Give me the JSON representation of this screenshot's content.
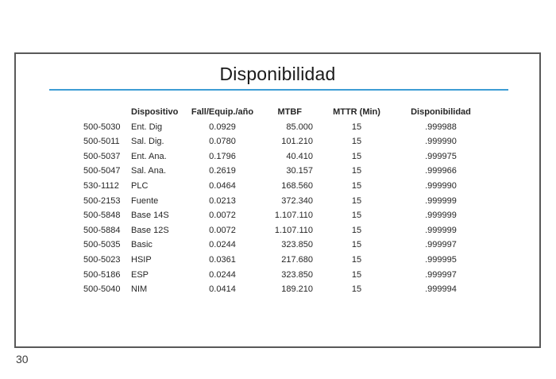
{
  "page_number": "30",
  "colors": {
    "accent_line": "#3d9dd4",
    "slide_border": "#595959",
    "title_text": "#1a1a1a",
    "table_text": "#262626"
  },
  "slide": {
    "title": "Disponibilidad",
    "table": {
      "headers": [
        "",
        "Dispositivo",
        "Fall/Equip./año",
        "MTBF",
        "MTTR (Min)",
        "Disponibilidad"
      ],
      "rows": [
        [
          "500-5030",
          "Ent. Dig",
          "0.0929",
          "85.000",
          "15",
          ".999988"
        ],
        [
          "500-5011",
          "Sal. Dig.",
          "0.0780",
          "101.210",
          "15",
          ".999990"
        ],
        [
          "500-5037",
          "Ent. Ana.",
          "0.1796",
          "40.410",
          "15",
          ".999975"
        ],
        [
          "500-5047",
          "Sal. Ana.",
          "0.2619",
          "30.157",
          "15",
          ".999966"
        ],
        [
          "530-1112",
          "PLC",
          "0.0464",
          "168.560",
          "15",
          ".999990"
        ],
        [
          "500-2153",
          "Fuente",
          "0.0213",
          "372.340",
          "15",
          ".999999"
        ],
        [
          "500-5848",
          "Base 14S",
          "0.0072",
          "1.107.110",
          "15",
          ".999999"
        ],
        [
          "500-5884",
          "Base 12S",
          "0.0072",
          "1.107.110",
          "15",
          ".999999"
        ],
        [
          "500-5035",
          "Basic",
          "0.0244",
          "323.850",
          "15",
          ".999997"
        ],
        [
          "500-5023",
          "HSIP",
          "0.0361",
          "217.680",
          "15",
          ".999995"
        ],
        [
          "500-5186",
          "ESP",
          "0.0244",
          "323.850",
          "15",
          ".999997"
        ],
        [
          "500-5040",
          "NIM",
          "0.0414",
          "189.210",
          "15",
          ".999994"
        ]
      ]
    }
  }
}
